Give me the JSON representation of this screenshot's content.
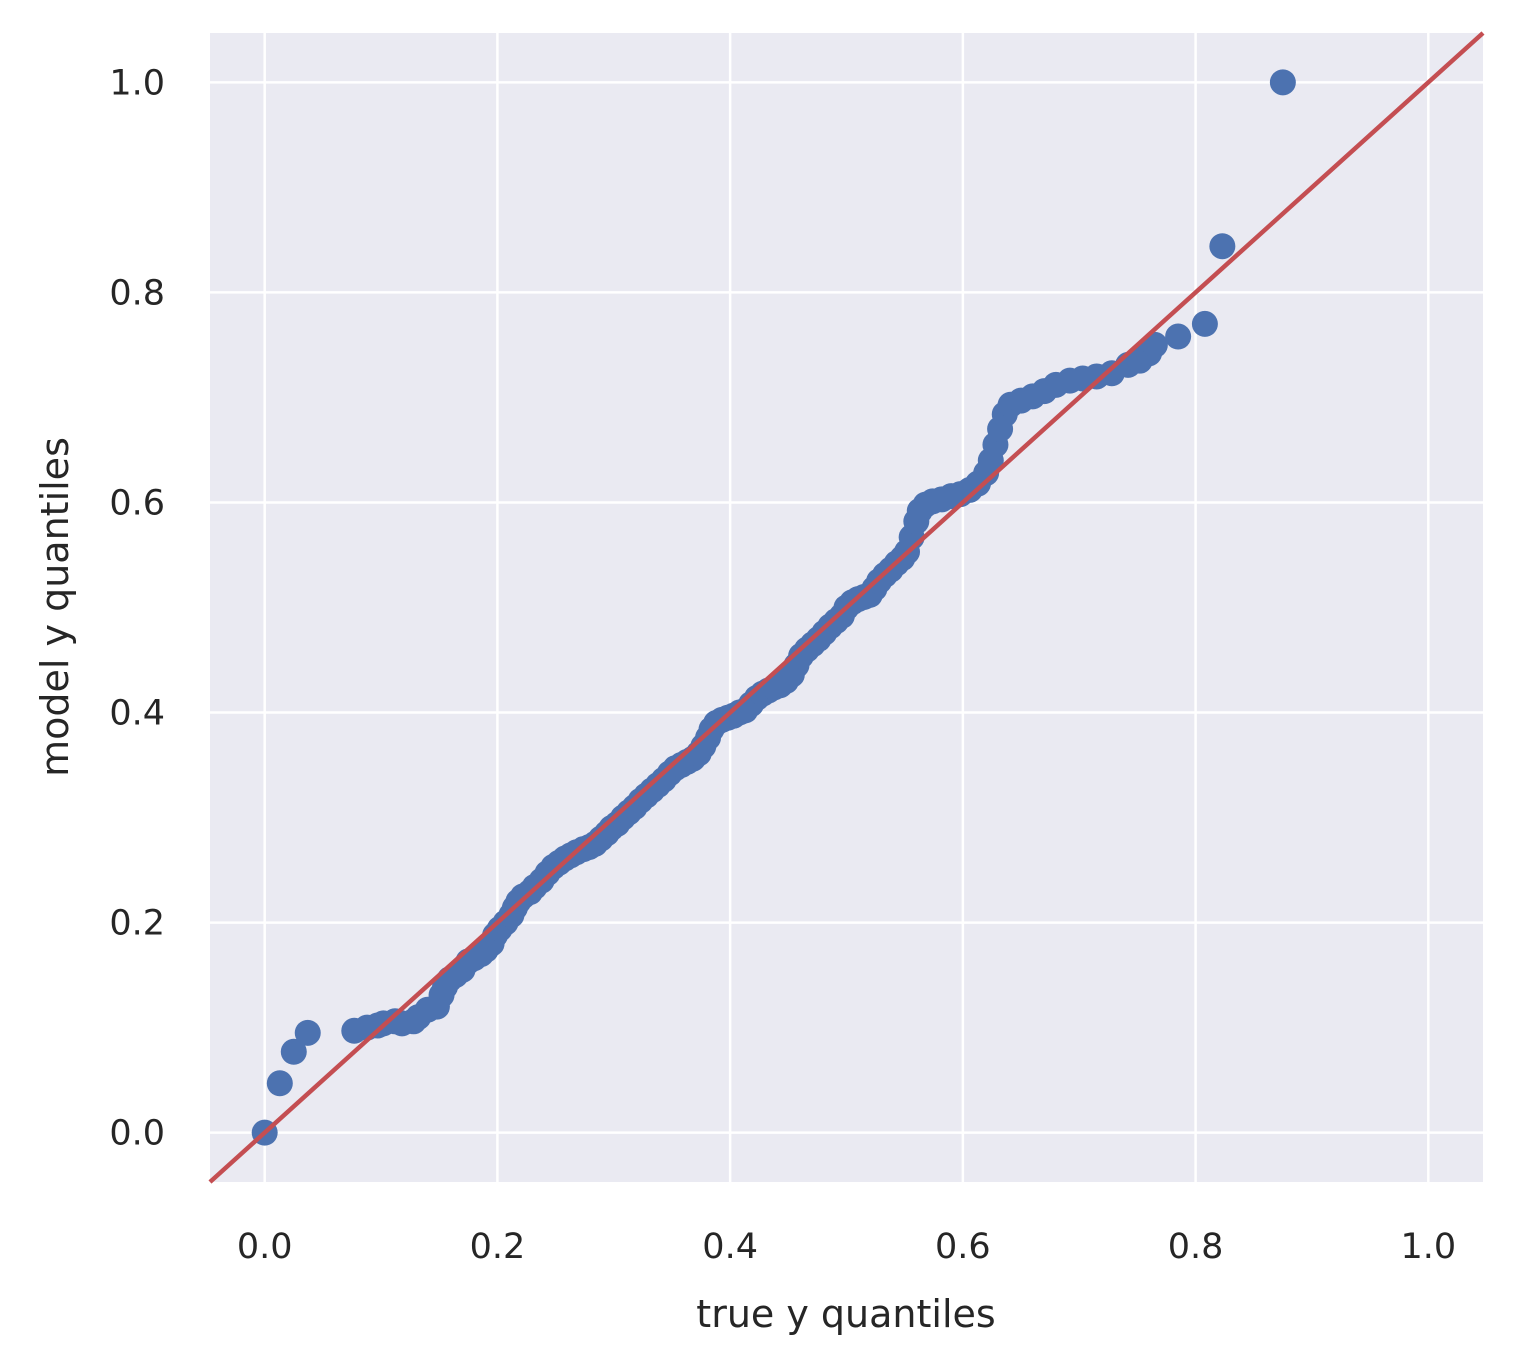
{
  "chart_data": {
    "type": "scatter",
    "title": "",
    "xlabel": "true y quantiles",
    "ylabel": "model y quantiles",
    "xlim": [
      -0.047,
      1.047
    ],
    "ylim": [
      -0.047,
      1.047
    ],
    "xticks": [
      0.0,
      0.2,
      0.4,
      0.6,
      0.8,
      1.0
    ],
    "yticks": [
      0.0,
      0.2,
      0.4,
      0.6,
      0.8,
      1.0
    ],
    "xtick_labels": [
      "0.0",
      "0.2",
      "0.4",
      "0.6",
      "0.8",
      "1.0"
    ],
    "ytick_labels": [
      "0.0",
      "0.2",
      "0.4",
      "0.6",
      "0.8",
      "1.0"
    ],
    "grid": true,
    "background": "#eaeaf2",
    "grid_color": "#ffffff",
    "marker_color": "#4c72b0",
    "reference_line": {
      "color": "#c44e52",
      "slope": 1,
      "intercept": 0
    },
    "points": [
      [
        0.0,
        0.0
      ],
      [
        0.013,
        0.047
      ],
      [
        0.025,
        0.077
      ],
      [
        0.037,
        0.095
      ],
      [
        0.077,
        0.097
      ],
      [
        0.088,
        0.1
      ],
      [
        0.097,
        0.102
      ],
      [
        0.102,
        0.104
      ],
      [
        0.112,
        0.106
      ],
      [
        0.118,
        0.104
      ],
      [
        0.128,
        0.106
      ],
      [
        0.132,
        0.11
      ],
      [
        0.14,
        0.117
      ],
      [
        0.148,
        0.12
      ],
      [
        0.152,
        0.131
      ],
      [
        0.155,
        0.139
      ],
      [
        0.159,
        0.146
      ],
      [
        0.164,
        0.15
      ],
      [
        0.17,
        0.155
      ],
      [
        0.175,
        0.163
      ],
      [
        0.18,
        0.166
      ],
      [
        0.186,
        0.17
      ],
      [
        0.19,
        0.174
      ],
      [
        0.195,
        0.18
      ],
      [
        0.198,
        0.188
      ],
      [
        0.202,
        0.194
      ],
      [
        0.207,
        0.2
      ],
      [
        0.212,
        0.207
      ],
      [
        0.215,
        0.214
      ],
      [
        0.218,
        0.22
      ],
      [
        0.222,
        0.225
      ],
      [
        0.228,
        0.229
      ],
      [
        0.232,
        0.234
      ],
      [
        0.238,
        0.24
      ],
      [
        0.243,
        0.247
      ],
      [
        0.248,
        0.253
      ],
      [
        0.253,
        0.257
      ],
      [
        0.258,
        0.261
      ],
      [
        0.263,
        0.264
      ],
      [
        0.268,
        0.267
      ],
      [
        0.274,
        0.27
      ],
      [
        0.279,
        0.272
      ],
      [
        0.284,
        0.275
      ],
      [
        0.289,
        0.28
      ],
      [
        0.294,
        0.285
      ],
      [
        0.298,
        0.29
      ],
      [
        0.303,
        0.294
      ],
      [
        0.308,
        0.3
      ],
      [
        0.313,
        0.305
      ],
      [
        0.318,
        0.31
      ],
      [
        0.323,
        0.316
      ],
      [
        0.328,
        0.321
      ],
      [
        0.333,
        0.326
      ],
      [
        0.338,
        0.331
      ],
      [
        0.343,
        0.336
      ],
      [
        0.348,
        0.342
      ],
      [
        0.353,
        0.347
      ],
      [
        0.358,
        0.35
      ],
      [
        0.363,
        0.353
      ],
      [
        0.368,
        0.356
      ],
      [
        0.373,
        0.361
      ],
      [
        0.377,
        0.368
      ],
      [
        0.381,
        0.376
      ],
      [
        0.384,
        0.384
      ],
      [
        0.388,
        0.39
      ],
      [
        0.393,
        0.393
      ],
      [
        0.398,
        0.395
      ],
      [
        0.403,
        0.397
      ],
      [
        0.408,
        0.4
      ],
      [
        0.413,
        0.402
      ],
      [
        0.418,
        0.408
      ],
      [
        0.423,
        0.414
      ],
      [
        0.428,
        0.418
      ],
      [
        0.433,
        0.421
      ],
      [
        0.438,
        0.424
      ],
      [
        0.443,
        0.426
      ],
      [
        0.448,
        0.43
      ],
      [
        0.453,
        0.436
      ],
      [
        0.457,
        0.445
      ],
      [
        0.461,
        0.454
      ],
      [
        0.466,
        0.46
      ],
      [
        0.471,
        0.465
      ],
      [
        0.476,
        0.47
      ],
      [
        0.481,
        0.476
      ],
      [
        0.486,
        0.482
      ],
      [
        0.491,
        0.487
      ],
      [
        0.496,
        0.492
      ],
      [
        0.5,
        0.5
      ],
      [
        0.505,
        0.505
      ],
      [
        0.51,
        0.508
      ],
      [
        0.515,
        0.51
      ],
      [
        0.52,
        0.512
      ],
      [
        0.524,
        0.518
      ],
      [
        0.528,
        0.525
      ],
      [
        0.533,
        0.531
      ],
      [
        0.538,
        0.536
      ],
      [
        0.543,
        0.542
      ],
      [
        0.548,
        0.547
      ],
      [
        0.552,
        0.553
      ],
      [
        0.556,
        0.567
      ],
      [
        0.56,
        0.582
      ],
      [
        0.563,
        0.592
      ],
      [
        0.568,
        0.598
      ],
      [
        0.574,
        0.601
      ],
      [
        0.582,
        0.603
      ],
      [
        0.59,
        0.606
      ],
      [
        0.598,
        0.608
      ],
      [
        0.606,
        0.612
      ],
      [
        0.613,
        0.618
      ],
      [
        0.62,
        0.628
      ],
      [
        0.624,
        0.64
      ],
      [
        0.628,
        0.655
      ],
      [
        0.632,
        0.67
      ],
      [
        0.636,
        0.684
      ],
      [
        0.641,
        0.693
      ],
      [
        0.65,
        0.697
      ],
      [
        0.66,
        0.701
      ],
      [
        0.67,
        0.706
      ],
      [
        0.68,
        0.712
      ],
      [
        0.692,
        0.716
      ],
      [
        0.703,
        0.718
      ],
      [
        0.715,
        0.72
      ],
      [
        0.728,
        0.723
      ],
      [
        0.742,
        0.731
      ],
      [
        0.752,
        0.735
      ],
      [
        0.76,
        0.742
      ],
      [
        0.765,
        0.75
      ],
      [
        0.785,
        0.758
      ],
      [
        0.808,
        0.77
      ],
      [
        0.823,
        0.844
      ],
      [
        0.875,
        1.0
      ]
    ]
  }
}
